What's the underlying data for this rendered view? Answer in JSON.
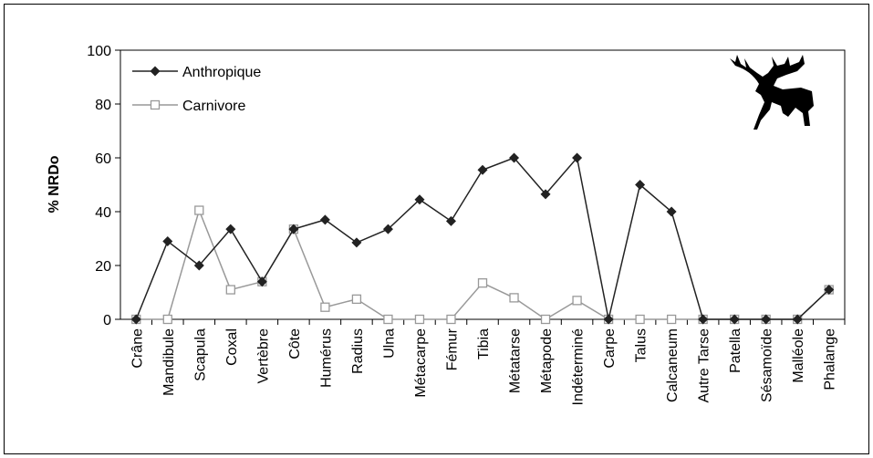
{
  "chart_data": {
    "type": "line",
    "y_label": "% NRDo",
    "categories": [
      "Crâne",
      "Mandibule",
      "Scapula",
      "Coxal",
      "Vertèbre",
      "Côte",
      "Humérus",
      "Radius",
      "Ulna",
      "Métacarpe",
      "Fémur",
      "Tibia",
      "Métatarse",
      "Métapode",
      "Indéterminé",
      "Carpe",
      "Talus",
      "Calcaneum",
      "Autre Tarse",
      "Patella",
      "Sésamoïde",
      "Malléole",
      "Phalange"
    ],
    "series": [
      {
        "name": "Anthropique",
        "color": "#222222",
        "marker": "diamond",
        "values": [
          0,
          29,
          20,
          33.5,
          14,
          33.5,
          37,
          28.5,
          33.5,
          44.5,
          36.5,
          55.5,
          60,
          46.5,
          60,
          0,
          50,
          40,
          0,
          0,
          0,
          0,
          11
        ]
      },
      {
        "name": "Carnivore",
        "color": "#999999",
        "marker": "square",
        "values": [
          0,
          0,
          40.5,
          11,
          14,
          33.5,
          4.5,
          7.5,
          0,
          0,
          0,
          13.5,
          8,
          0,
          7,
          0,
          0,
          0,
          0,
          0,
          0,
          0,
          11
        ]
      }
    ],
    "ylim": [
      0,
      100
    ],
    "yticks": [
      0,
      20,
      40,
      60,
      80,
      100
    ]
  }
}
